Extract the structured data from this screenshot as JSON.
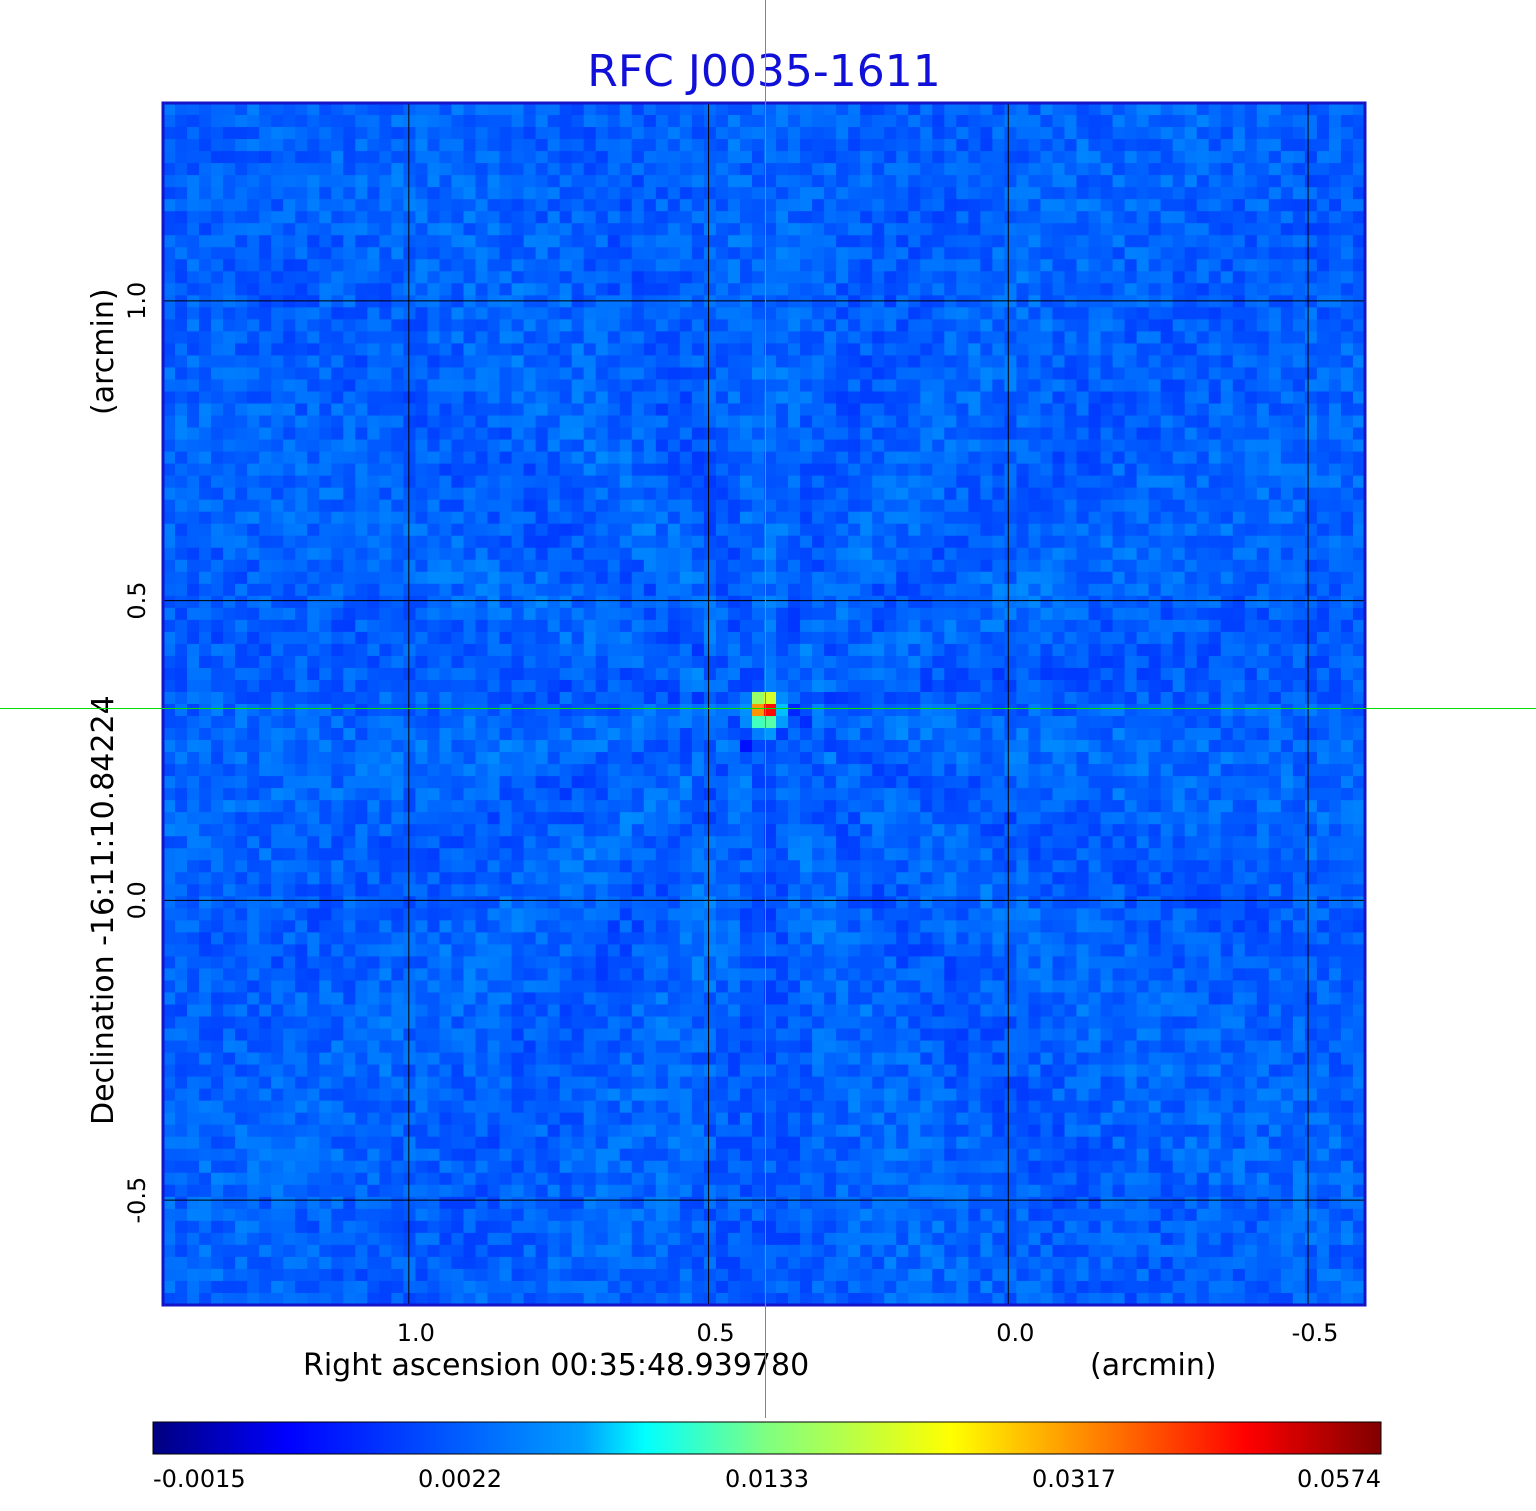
{
  "chart_data": {
    "type": "heatmap",
    "title": "RFC J0035-1611",
    "xlabel": "Right ascension  00:35:48.939780",
    "xunit": "(arcmin)",
    "ylabel": "Declination  -16:11:10.84224",
    "yunit": "(arcmin)",
    "x_ticks": [
      {
        "value": 1.0,
        "label": "1.0"
      },
      {
        "value": 0.5,
        "label": "0.5"
      },
      {
        "value": 0.0,
        "label": "0.0"
      },
      {
        "value": -0.5,
        "label": "-0.5"
      }
    ],
    "y_ticks": [
      {
        "value": 1.0,
        "label": "1.0"
      },
      {
        "value": 0.5,
        "label": "0.5"
      },
      {
        "value": 0.0,
        "label": "0.0"
      },
      {
        "value": -0.5,
        "label": "-0.5"
      }
    ],
    "xlim": [
      1.41,
      -0.595
    ],
    "ylim": [
      -0.675,
      1.33
    ],
    "grid": true,
    "colormap": "jet",
    "colorbar": {
      "labels": [
        "-0.0015",
        "0.0022",
        "0.0133",
        "0.0317",
        "0.0574"
      ],
      "min": -0.0015,
      "max": 0.0574
    },
    "peak": {
      "x": 0.405,
      "y": 0.32,
      "value": 0.0574
    },
    "background_level": 0.0005,
    "crosshair": {
      "x": 0.405,
      "y": 0.32,
      "color": "#00e000"
    }
  }
}
